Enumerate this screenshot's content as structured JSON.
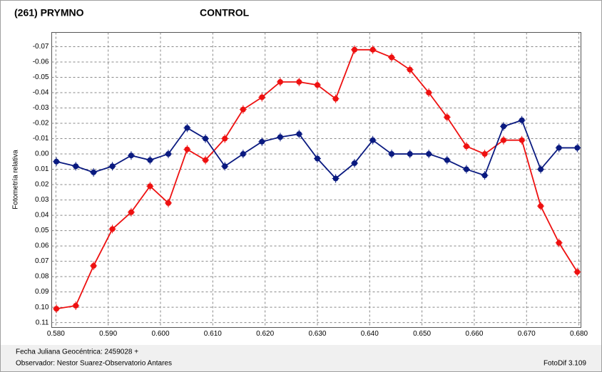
{
  "chart_data": {
    "type": "line",
    "y_label": "Fotometría relativa",
    "x_label": "Fecha Juliana Geocéntrica: 2459028 +",
    "observer": "Observador: Nestor Suarez-Observatorio Antares",
    "software": "FotoDif 3.109",
    "x": [
      0.5801,
      0.5838,
      0.5872,
      0.5908,
      0.5944,
      0.598,
      0.6015,
      0.6051,
      0.6086,
      0.6123,
      0.6158,
      0.6194,
      0.6229,
      0.6265,
      0.63,
      0.6335,
      0.6371,
      0.6406,
      0.6442,
      0.6477,
      0.6513,
      0.6548,
      0.6585,
      0.662,
      0.6656,
      0.6691,
      0.6727,
      0.6762,
      0.6797
    ],
    "series": [
      {
        "name": "(261) PRYMNO",
        "color": "#ee1111",
        "values": [
          0.101,
          0.099,
          0.073,
          0.049,
          0.038,
          0.021,
          0.032,
          -0.003,
          0.004,
          -0.01,
          -0.029,
          -0.037,
          -0.047,
          -0.047,
          -0.045,
          -0.036,
          -0.068,
          -0.068,
          -0.063,
          -0.055,
          -0.04,
          -0.024,
          -0.005,
          0.0,
          -0.009,
          -0.009,
          0.034,
          0.058,
          0.077
        ]
      },
      {
        "name": "CONTROL",
        "color": "#0a1a80",
        "values": [
          0.005,
          0.008,
          0.012,
          0.008,
          0.001,
          0.004,
          0.0,
          -0.017,
          -0.01,
          0.008,
          0.0,
          -0.008,
          -0.011,
          -0.013,
          0.003,
          0.016,
          0.006,
          -0.009,
          0.0,
          0.0,
          0.0,
          0.004,
          0.01,
          0.014,
          -0.018,
          -0.022,
          0.01,
          -0.004,
          -0.004
        ]
      }
    ],
    "xlim": [
      0.5792,
      0.6804
    ],
    "xticks": [
      {
        "value": 0.58,
        "label": "0.580"
      },
      {
        "value": 0.59,
        "label": "0.590"
      },
      {
        "value": 0.6,
        "label": "0.600"
      },
      {
        "value": 0.61,
        "label": "0.610"
      },
      {
        "value": 0.62,
        "label": "0.620"
      },
      {
        "value": 0.63,
        "label": "0.630"
      },
      {
        "value": 0.64,
        "label": "0.640"
      },
      {
        "value": 0.65,
        "label": "0.650"
      },
      {
        "value": 0.66,
        "label": "0.660"
      },
      {
        "value": 0.67,
        "label": "0.670"
      },
      {
        "value": 0.68,
        "label": "0.680"
      }
    ],
    "ylim": [
      -0.0793,
      0.1132
    ],
    "y_reversed": true,
    "yticks": [
      -0.07,
      -0.06,
      -0.05,
      -0.04,
      -0.03,
      -0.02,
      -0.01,
      {
        "value": 0,
        "label": "0.00"
      },
      0.01,
      0.02,
      0.03,
      0.04,
      0.05,
      0.06,
      0.07,
      0.08,
      0.09,
      {
        "value": 0.1,
        "label": "0.10"
      },
      0.11
    ],
    "grid": true
  }
}
